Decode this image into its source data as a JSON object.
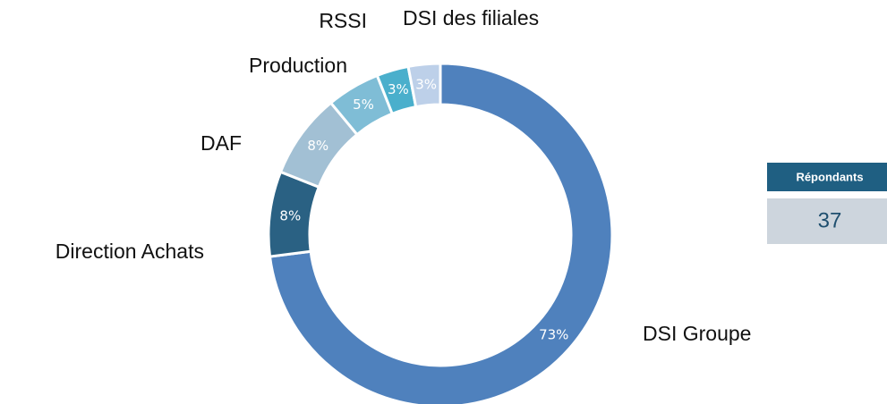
{
  "chart_data": {
    "type": "donut",
    "categories": [
      "DSI Groupe",
      "Direction Achats",
      "DAF",
      "Production",
      "RSSI",
      "DSI des filiales"
    ],
    "values": [
      73,
      8,
      8,
      5,
      3,
      3
    ],
    "value_labels": [
      "73%",
      "8%",
      "8%",
      "5%",
      "3%",
      "3%"
    ],
    "colors": [
      "#4f81bd",
      "#2a6183",
      "#a2c0d4",
      "#7fbdd6",
      "#4aafcc",
      "#bdd0e9"
    ]
  },
  "respondents": {
    "header": "Répondants",
    "value": 37
  }
}
